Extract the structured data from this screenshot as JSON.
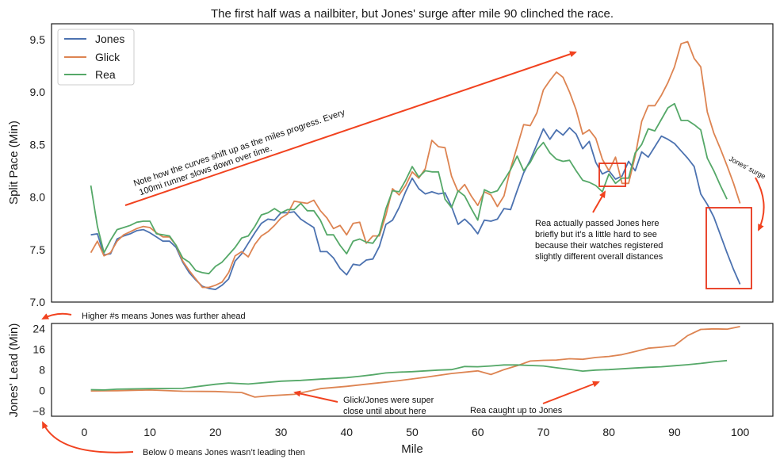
{
  "colors": {
    "jones": "#4c72b0",
    "glick": "#dd8452",
    "rea": "#55a868",
    "accent": "#f1421f"
  },
  "chart_data": [
    {
      "type": "line",
      "title": "The first half was a nailbiter, but Jones' surge after mile 90 clinched the race.",
      "xlabel": "",
      "ylabel": "Split Pace (Min)",
      "xlim": [
        -5,
        105
      ],
      "ylim": [
        7.0,
        9.65
      ],
      "yticks": [
        "7.0",
        "7.5",
        "8.0",
        "8.5",
        "9.0",
        "9.5"
      ],
      "legend": "top-left",
      "grid": false,
      "series": [
        {
          "name": "Jones",
          "color": "#4c72b0",
          "x": [
            1,
            2,
            3,
            4,
            5,
            6,
            7,
            8,
            9,
            10,
            11,
            12,
            13,
            14,
            15,
            16,
            17,
            18,
            19,
            20,
            21,
            22,
            23,
            24,
            25,
            26,
            27,
            28,
            29,
            30,
            31,
            32,
            33,
            34,
            35,
            36,
            37,
            38,
            39,
            40,
            41,
            42,
            43,
            44,
            45,
            46,
            47,
            48,
            49,
            50,
            51,
            52,
            53,
            54,
            55,
            56,
            57,
            58,
            59,
            60,
            61,
            62,
            63,
            64,
            65,
            66,
            67,
            68,
            69,
            70,
            71,
            72,
            73,
            74,
            75,
            76,
            77,
            78,
            79,
            80,
            81,
            82,
            83,
            84,
            85,
            86,
            87,
            88,
            89,
            90,
            91,
            92,
            93,
            94,
            95,
            96,
            97,
            98,
            99,
            100
          ],
          "y": [
            7.64,
            7.65,
            7.45,
            7.46,
            7.6,
            7.63,
            7.65,
            7.68,
            7.69,
            7.66,
            7.62,
            7.58,
            7.58,
            7.52,
            7.38,
            7.28,
            7.21,
            7.15,
            7.13,
            7.12,
            7.16,
            7.22,
            7.39,
            7.46,
            7.56,
            7.66,
            7.75,
            7.79,
            7.78,
            7.85,
            7.85,
            7.86,
            7.79,
            7.75,
            7.71,
            7.48,
            7.48,
            7.42,
            7.32,
            7.26,
            7.36,
            7.35,
            7.4,
            7.41,
            7.53,
            7.74,
            7.78,
            7.9,
            8.05,
            8.18,
            8.08,
            8.03,
            8.05,
            8.03,
            8.04,
            7.91,
            7.74,
            7.79,
            7.73,
            7.65,
            7.78,
            7.77,
            7.79,
            7.89,
            7.88,
            8.06,
            8.23,
            8.35,
            8.5,
            8.65,
            8.55,
            8.64,
            8.59,
            8.66,
            8.6,
            8.46,
            8.53,
            8.33,
            8.22,
            8.25,
            8.17,
            8.2,
            8.34,
            8.25,
            8.43,
            8.38,
            8.48,
            8.58,
            8.55,
            8.51,
            8.44,
            8.37,
            8.29,
            8.03,
            7.93,
            7.81,
            7.64,
            7.47,
            7.31,
            7.17
          ]
        },
        {
          "name": "Glick",
          "color": "#dd8452",
          "x": [
            1,
            2,
            3,
            4,
            5,
            6,
            7,
            8,
            9,
            10,
            11,
            12,
            13,
            14,
            15,
            16,
            17,
            18,
            19,
            20,
            21,
            22,
            23,
            24,
            25,
            26,
            27,
            28,
            29,
            30,
            31,
            32,
            33,
            34,
            35,
            36,
            37,
            38,
            39,
            40,
            41,
            42,
            43,
            44,
            45,
            46,
            47,
            48,
            49,
            50,
            51,
            52,
            53,
            54,
            55,
            56,
            57,
            58,
            59,
            60,
            61,
            62,
            63,
            64,
            65,
            66,
            67,
            68,
            69,
            70,
            71,
            72,
            73,
            74,
            75,
            76,
            77,
            78,
            79,
            80,
            81,
            82,
            83,
            84,
            85,
            86,
            87,
            88,
            89,
            90,
            91,
            92,
            93,
            94,
            95,
            96,
            97,
            98,
            99,
            100
          ],
          "y": [
            7.47,
            7.58,
            7.44,
            7.47,
            7.58,
            7.64,
            7.67,
            7.7,
            7.72,
            7.71,
            7.66,
            7.62,
            7.62,
            7.54,
            7.39,
            7.3,
            7.22,
            7.14,
            7.14,
            7.16,
            7.19,
            7.28,
            7.44,
            7.48,
            7.43,
            7.55,
            7.63,
            7.67,
            7.73,
            7.8,
            7.84,
            7.96,
            7.95,
            7.94,
            7.97,
            7.87,
            7.8,
            7.7,
            7.73,
            7.64,
            7.75,
            7.76,
            7.56,
            7.63,
            7.63,
            7.83,
            8.08,
            8.02,
            8.11,
            8.24,
            8.18,
            8.27,
            8.54,
            8.48,
            8.47,
            8.2,
            8.05,
            8.12,
            8.01,
            7.92,
            8.05,
            8.02,
            7.91,
            8.01,
            8.27,
            8.48,
            8.69,
            8.68,
            8.8,
            9.02,
            9.11,
            9.19,
            9.14,
            9.0,
            8.83,
            8.6,
            8.64,
            8.56,
            8.36,
            8.25,
            8.38,
            8.13,
            8.13,
            8.39,
            8.72,
            8.87,
            8.87,
            8.97,
            9.09,
            9.24,
            9.46,
            9.48,
            9.32,
            9.24,
            8.81,
            8.61,
            8.46,
            8.3,
            8.13,
            7.94
          ]
        },
        {
          "name": "Rea",
          "color": "#55a868",
          "x": [
            1,
            2,
            3,
            4,
            5,
            6,
            7,
            8,
            9,
            10,
            11,
            12,
            13,
            14,
            15,
            16,
            17,
            18,
            19,
            20,
            21,
            22,
            23,
            24,
            25,
            26,
            27,
            28,
            29,
            30,
            31,
            32,
            33,
            34,
            35,
            36,
            37,
            38,
            39,
            40,
            41,
            42,
            43,
            44,
            45,
            46,
            47,
            48,
            49,
            50,
            51,
            52,
            53,
            54,
            55,
            56,
            57,
            58,
            59,
            60,
            61,
            62,
            63,
            64,
            65,
            66,
            67,
            68,
            69,
            70,
            71,
            72,
            73,
            74,
            75,
            76,
            77,
            78,
            79,
            80,
            81,
            82,
            83,
            84,
            85,
            86,
            87,
            88,
            89,
            90,
            91,
            92,
            93,
            94,
            95,
            96,
            97,
            98
          ],
          "y": [
            8.11,
            7.72,
            7.47,
            7.59,
            7.69,
            7.71,
            7.73,
            7.76,
            7.77,
            7.77,
            7.65,
            7.64,
            7.63,
            7.54,
            7.42,
            7.38,
            7.3,
            7.28,
            7.27,
            7.34,
            7.38,
            7.45,
            7.52,
            7.61,
            7.63,
            7.72,
            7.83,
            7.85,
            7.89,
            7.85,
            7.88,
            7.88,
            7.94,
            7.87,
            7.87,
            7.78,
            7.64,
            7.64,
            7.54,
            7.46,
            7.58,
            7.6,
            7.57,
            7.56,
            7.65,
            7.89,
            8.06,
            8.05,
            8.16,
            8.29,
            8.19,
            8.25,
            8.24,
            8.24,
            7.98,
            7.9,
            8.06,
            8.01,
            7.89,
            7.78,
            8.07,
            8.04,
            8.06,
            8.16,
            8.26,
            8.39,
            8.25,
            8.33,
            8.45,
            8.52,
            8.42,
            8.36,
            8.34,
            8.35,
            8.25,
            8.16,
            8.14,
            8.11,
            8.05,
            8.22,
            8.13,
            8.18,
            8.18,
            8.42,
            8.5,
            8.65,
            8.63,
            8.74,
            8.85,
            8.89,
            8.73,
            8.73,
            8.69,
            8.64,
            8.37,
            8.25,
            8.11,
            7.98
          ]
        }
      ]
    },
    {
      "type": "line",
      "title": "",
      "xlabel": "Mile",
      "ylabel": "Jones' Lead (Min)",
      "xlim": [
        -5,
        105
      ],
      "ylim": [
        -10,
        26
      ],
      "yticks": [
        "−8",
        "0",
        "8",
        "16",
        "24"
      ],
      "xticks": [
        "0",
        "10",
        "20",
        "30",
        "40",
        "50",
        "60",
        "70",
        "80",
        "90",
        "100"
      ],
      "grid": false,
      "series": [
        {
          "name": "Glick",
          "color": "#dd8452",
          "x": [
            1,
            5,
            10,
            15,
            20,
            24,
            26,
            28,
            32,
            36,
            40,
            44,
            48,
            52,
            56,
            60,
            62,
            64,
            66,
            68,
            70,
            72,
            74,
            76,
            78,
            80,
            82,
            84,
            86,
            88,
            90,
            92,
            94,
            96,
            98,
            100
          ],
          "y": [
            -0.2,
            -0.1,
            0.2,
            -0.3,
            -0.4,
            -0.8,
            -2.6,
            -2.1,
            -1.5,
            0.7,
            1.6,
            2.7,
            3.8,
            5.1,
            6.6,
            7.6,
            6.2,
            8.1,
            9.6,
            11.4,
            11.7,
            11.8,
            12.3,
            12.1,
            12.8,
            13.2,
            13.9,
            15.1,
            16.4,
            16.8,
            17.4,
            21.3,
            23.7,
            23.9,
            23.8,
            24.8
          ]
        },
        {
          "name": "Rea",
          "color": "#55a868",
          "x": [
            1,
            3,
            5,
            10,
            15,
            20,
            22,
            25,
            30,
            33,
            36,
            40,
            42,
            44,
            46,
            48,
            50,
            52,
            54,
            56,
            58,
            60,
            62,
            64,
            66,
            68,
            70,
            72,
            74,
            76,
            78,
            80,
            82,
            84,
            86,
            88,
            90,
            92,
            94,
            96,
            98
          ],
          "y": [
            0.3,
            0.2,
            0.5,
            0.7,
            0.8,
            2.4,
            2.9,
            2.5,
            3.6,
            3.9,
            4.4,
            5.0,
            5.5,
            6.1,
            6.8,
            7.1,
            7.3,
            7.6,
            7.9,
            8.1,
            9.3,
            9.2,
            9.5,
            9.9,
            9.9,
            9.7,
            9.5,
            8.8,
            8.2,
            7.5,
            7.9,
            8.1,
            8.4,
            8.7,
            9.0,
            9.2,
            9.6,
            10.0,
            10.5,
            11.1,
            11.6
          ]
        }
      ]
    }
  ],
  "annotations": {
    "curves_note": "Note how the curves shift up as the miles progress. Every 100mi runner slows down over time.",
    "rea_passed_1": "Rea actually passed Jones here",
    "rea_passed_2": "briefly but it’s a little hard to see",
    "rea_passed_3": "because their watches registered",
    "rea_passed_4": "slightly different overall distances",
    "jones_surge": "Jones' surge",
    "higher_means": "Higher #s means Jones was further ahead",
    "glick_close_1": "Glick/Jones were super",
    "glick_close_2": "close until about here",
    "rea_caught": "Rea caught up to Jones",
    "below_zero": "Below 0 means Jones wasn’t leading then"
  }
}
